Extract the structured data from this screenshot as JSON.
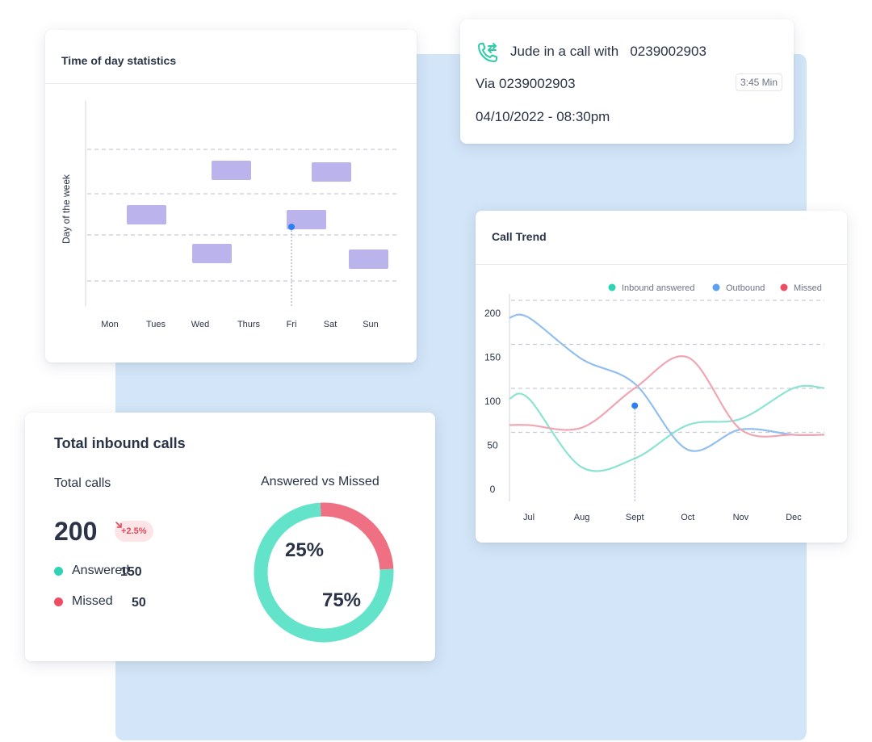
{
  "time_of_day": {
    "title": "Time of day statistics",
    "y_axis_label": "Day of the week",
    "days": [
      "Mon",
      "Tues",
      "Wed",
      "Thurs",
      "Fri",
      "Sat",
      "Sun"
    ],
    "bar_color": "#bbb3ec",
    "marker_color": "#2d7ff0"
  },
  "call_card": {
    "line1": "Jude in a call with   0239002903",
    "via": "Via 0239002903",
    "duration": "3:45 Min",
    "datetime": "04/10/2022 - 08:30pm",
    "icon": "phone-transfer-icon",
    "accent": "#2ecba7"
  },
  "call_trend": {
    "title": "Call Trend",
    "legend": [
      {
        "label": "Inbound answered",
        "color": "#2ed3b3"
      },
      {
        "label": "Outbound",
        "color": "#5d9ff0"
      },
      {
        "label": "Missed",
        "color": "#ee4c63"
      }
    ]
  },
  "chart_data": {
    "type": "line",
    "x": [
      "Jul",
      "Aug",
      "Sept",
      "Oct",
      "Nov",
      "Dec"
    ],
    "ylim": [
      0,
      200
    ],
    "yticks": [
      0,
      50,
      100,
      150,
      200
    ],
    "grid": true,
    "legend_position": "top-right",
    "series": [
      {
        "name": "Inbound answered",
        "color": "#8be4d2",
        "values": [
          103,
          25,
          35,
          73,
          80,
          115
        ]
      },
      {
        "name": "Outbound",
        "color": "#93bff0",
        "values": [
          195,
          148,
          120,
          45,
          68,
          62
        ]
      },
      {
        "name": "Missed",
        "color": "#f0a6b2",
        "values": [
          73,
          70,
          115,
          150,
          68,
          62
        ]
      }
    ],
    "marker": {
      "x": "Sept",
      "y": 95,
      "color": "#2d7ff0"
    }
  },
  "inbound": {
    "title": "Total inbound calls",
    "total_label": "Total calls",
    "total_value": "200",
    "change_badge": "+2.5%",
    "legend": [
      {
        "label": "Answered",
        "value": "150",
        "color": "#2ed3b3"
      },
      {
        "label": "Missed",
        "value": "50",
        "color": "#ee4c63"
      }
    ],
    "donut_title": "Answered vs Missed",
    "donut": [
      {
        "label": "Missed",
        "percent": 25,
        "text": "25%",
        "color": "#f07083"
      },
      {
        "label": "Answered",
        "percent": 75,
        "text": "75%",
        "color": "#63e3c9"
      }
    ]
  }
}
